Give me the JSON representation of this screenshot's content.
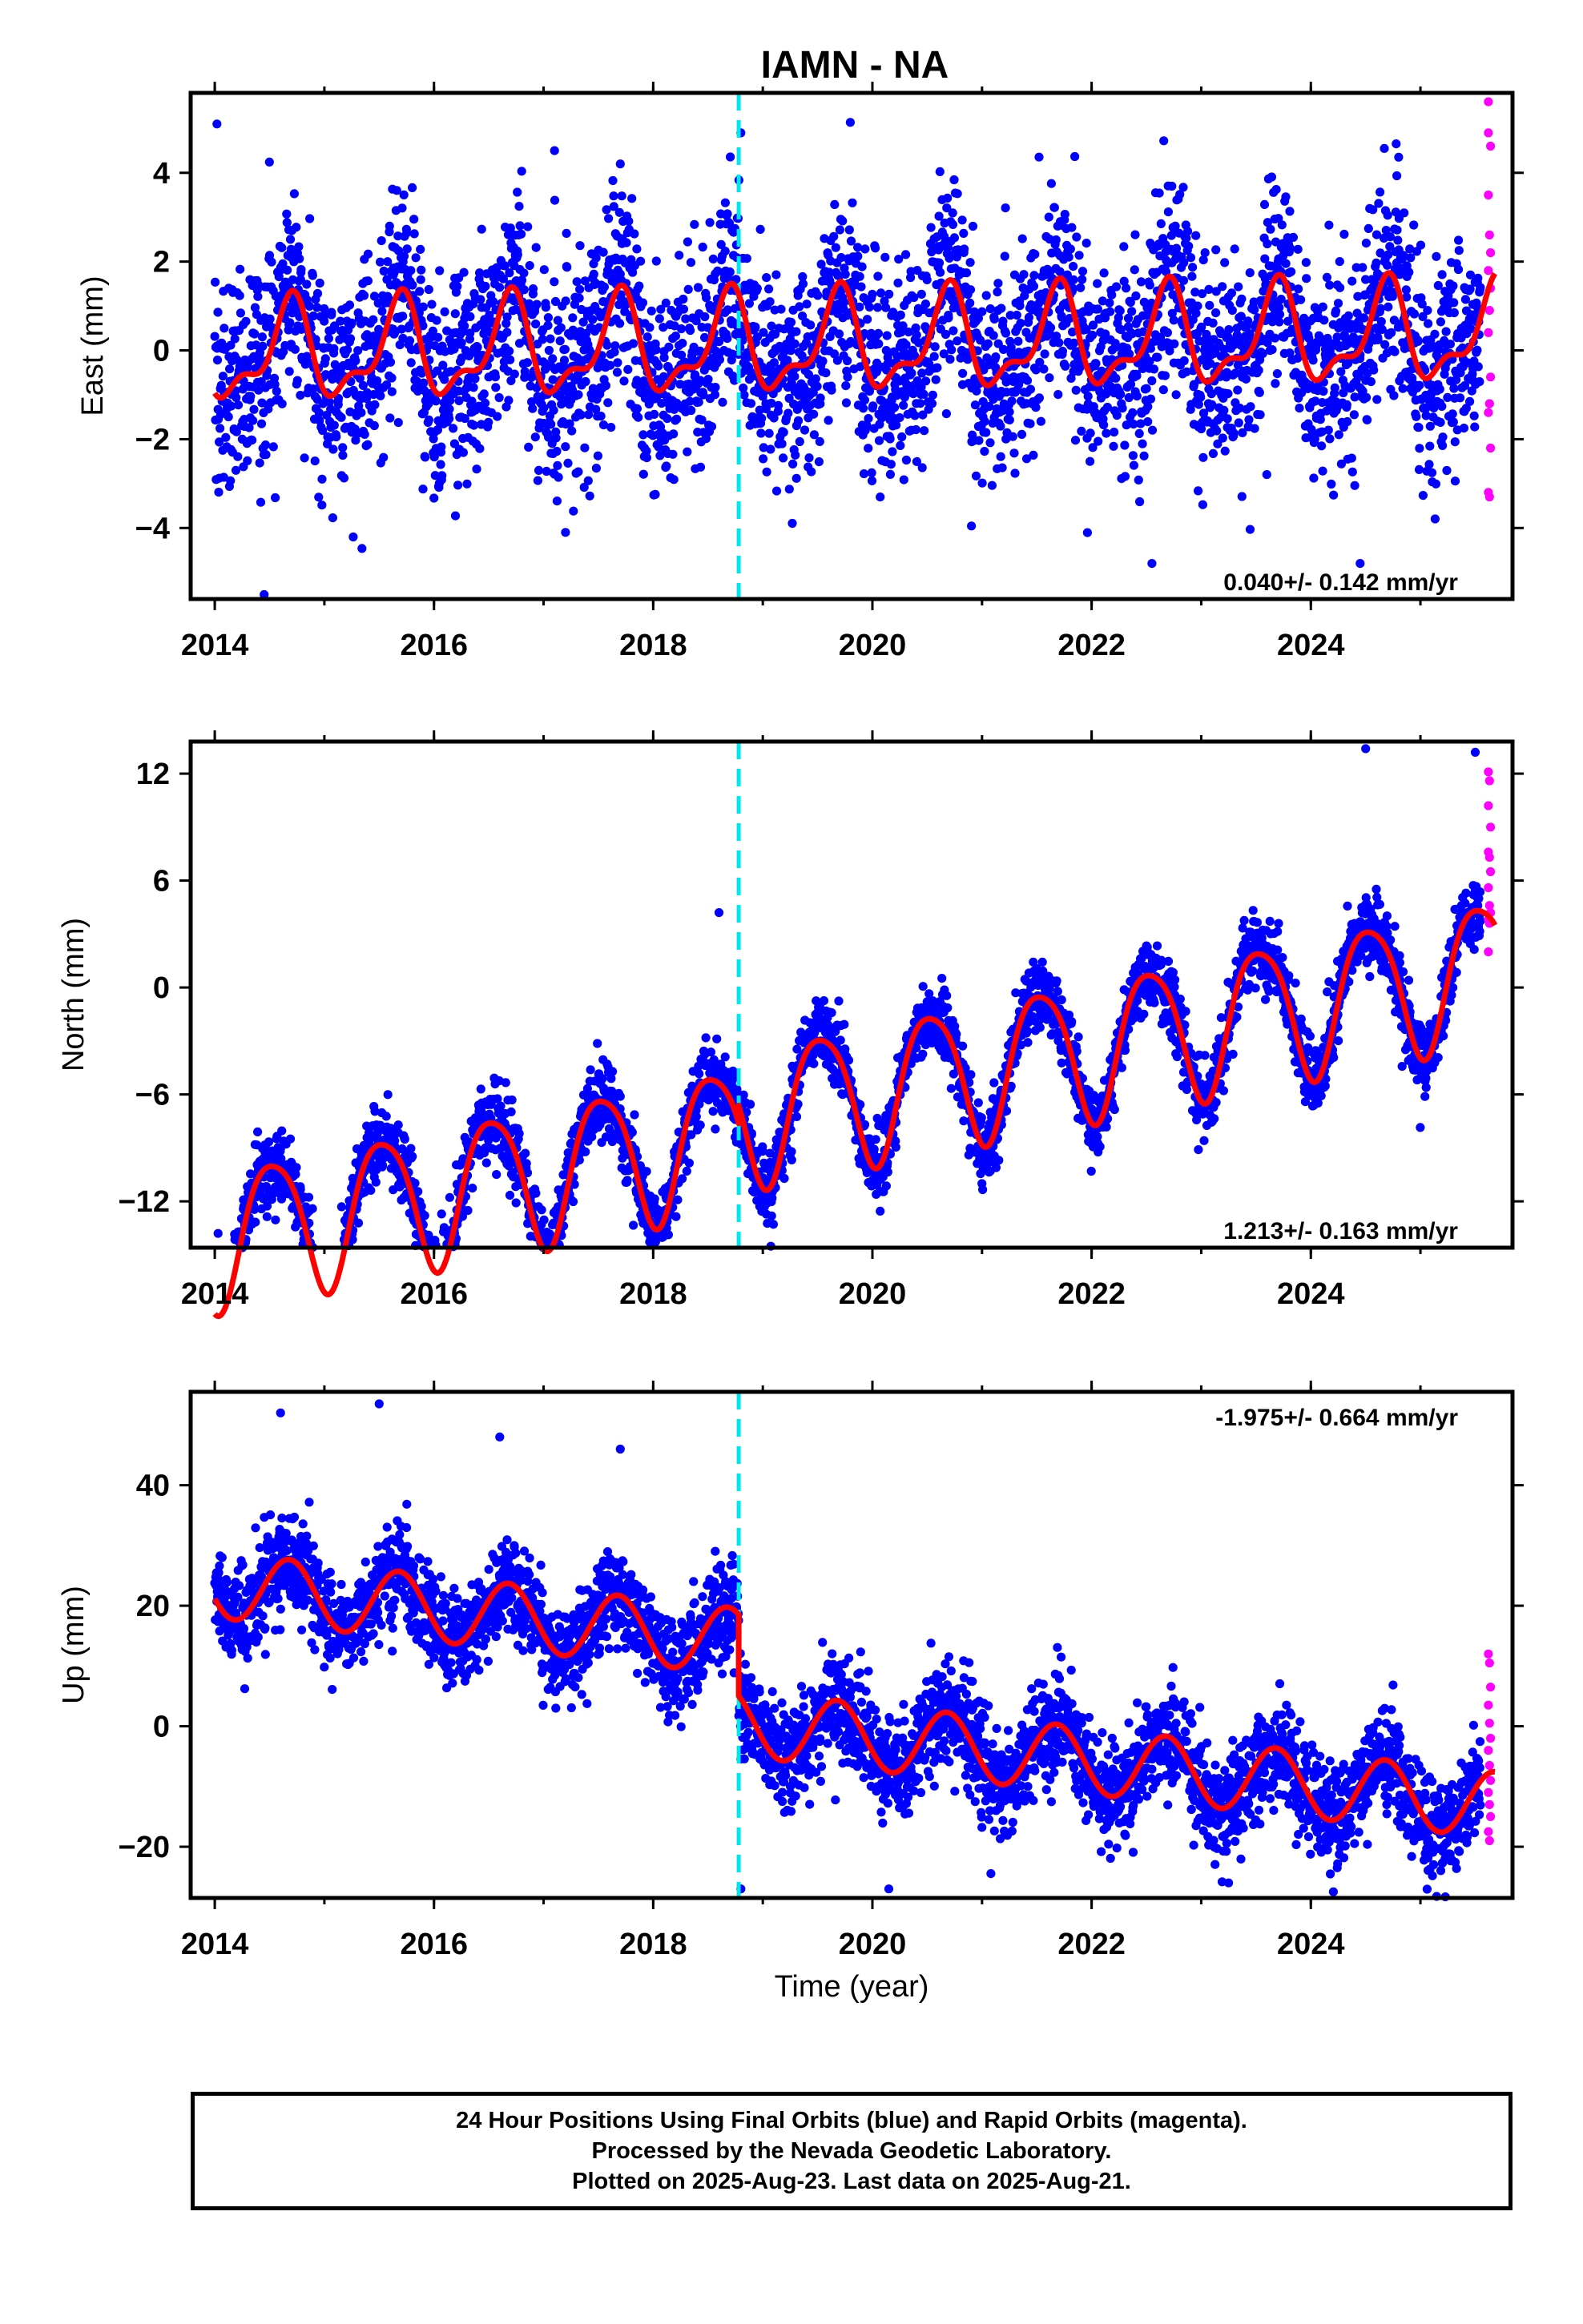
{
  "title": "IAMN - NA",
  "xlabel": "Time (year)",
  "colors": {
    "final_orbits": "#0000ff",
    "rapid_orbits": "#ff00ff",
    "model": "#ff0000",
    "equipment_change": "#00e5ee"
  },
  "caption": {
    "line1": "24 Hour Positions Using Final Orbits (blue) and Rapid Orbits (magenta).",
    "line2": "Processed by the Nevada Geodetic Laboratory.",
    "line3": "Plotted on 2025-Aug-23. Last data on 2025-Aug-21."
  },
  "chart_data": [
    {
      "type": "scatter",
      "ylabel": "East (mm)",
      "rate": "0.040+/- 0.142 mm/yr",
      "rate_position": "bottom-right",
      "xlim": [
        2013.78,
        2025.84
      ],
      "ylim": [
        -5.6,
        5.8
      ],
      "xticks": [
        2014,
        2016,
        2018,
        2020,
        2022,
        2024
      ],
      "yticks": [
        -4,
        -2,
        0,
        2,
        4
      ],
      "offset_epoch": 2018.78,
      "series": [
        {
          "name": "Final Orbits",
          "color": "#0000ff",
          "start": 2014.0,
          "end": 2025.55,
          "spread": 1.15,
          "outliers": [
            [
              2014.02,
              5.1
            ],
            [
              2018.8,
              4.9
            ],
            [
              2014.45,
              -5.5
            ],
            [
              2017.1,
              4.5
            ],
            [
              2017.7,
              4.2
            ],
            [
              2017.2,
              -4.1
            ],
            [
              2022.55,
              -4.8
            ],
            [
              2024.45,
              -4.8
            ]
          ]
        },
        {
          "name": "Rapid Orbits",
          "color": "#ff00ff",
          "points": [
            [
              2025.62,
              5.6
            ],
            [
              2025.62,
              4.9
            ],
            [
              2025.64,
              4.6
            ],
            [
              2025.62,
              3.5
            ],
            [
              2025.63,
              2.6
            ],
            [
              2025.64,
              2.2
            ],
            [
              2025.62,
              1.8
            ],
            [
              2025.64,
              1.4
            ],
            [
              2025.63,
              0.9
            ],
            [
              2025.62,
              0.4
            ],
            [
              2025.64,
              -0.6
            ],
            [
              2025.63,
              -1.2
            ],
            [
              2025.62,
              -1.4
            ],
            [
              2025.64,
              -2.2
            ],
            [
              2025.62,
              -3.2
            ],
            [
              2025.63,
              -3.3
            ]
          ]
        }
      ],
      "model": {
        "color": "#ff0000",
        "start": 2014.0,
        "end": 2025.68,
        "trend_mm_per_yr": 0.04,
        "intercept": -0.1,
        "annual_amp": 1.0,
        "annual_phase_yr": 0.68,
        "semiannual_amp": 0.45,
        "semiannual_phase_yr": 0.23,
        "offset_mm": 0.0
      }
    },
    {
      "type": "scatter",
      "ylabel": "North (mm)",
      "rate": "1.213+/- 0.163 mm/yr",
      "rate_position": "bottom-right",
      "xlim": [
        2013.78,
        2025.84
      ],
      "ylim": [
        -14.6,
        13.8
      ],
      "xticks": [
        2014,
        2016,
        2018,
        2020,
        2022,
        2024
      ],
      "yticks": [
        -12,
        -6,
        0,
        6,
        12
      ],
      "offset_epoch": 2018.78,
      "series": [
        {
          "name": "Final Orbits",
          "color": "#0000ff",
          "start": 2014.0,
          "end": 2025.55,
          "spread": 1.0,
          "outliers": [
            [
              2014.03,
              -13.8
            ],
            [
              2015.95,
              -13.9
            ],
            [
              2025.5,
              13.2
            ],
            [
              2024.5,
              13.4
            ],
            [
              2018.6,
              4.2
            ]
          ]
        },
        {
          "name": "Rapid Orbits",
          "color": "#ff00ff",
          "points": [
            [
              2025.62,
              12.1
            ],
            [
              2025.63,
              11.6
            ],
            [
              2025.62,
              10.2
            ],
            [
              2025.64,
              9.0
            ],
            [
              2025.62,
              7.6
            ],
            [
              2025.63,
              7.3
            ],
            [
              2025.64,
              6.5
            ],
            [
              2025.62,
              5.6
            ],
            [
              2025.63,
              4.6
            ],
            [
              2025.64,
              4.2
            ],
            [
              2025.62,
              3.8
            ],
            [
              2025.63,
              3.6
            ],
            [
              2025.62,
              2.0
            ]
          ]
        }
      ],
      "model": {
        "color": "#ff0000",
        "start": 2014.0,
        "end": 2025.68,
        "trend_mm_per_yr": 1.213,
        "intercept": -14.0,
        "annual_amp": 3.9,
        "annual_phase_yr": 0.53,
        "semiannual_amp": 0.6,
        "semiannual_phase_yr": 0.3,
        "offset_mm": 1.0
      }
    },
    {
      "type": "scatter",
      "ylabel": "Up (mm)",
      "rate": "-1.975+/- 0.664 mm/yr",
      "rate_position": "top-right",
      "xlim": [
        2013.78,
        2025.84
      ],
      "ylim": [
        -28.5,
        55.5
      ],
      "xticks": [
        2014,
        2016,
        2018,
        2020,
        2022,
        2024
      ],
      "yticks": [
        -20,
        0,
        20,
        40
      ],
      "offset_epoch": 2018.78,
      "series": [
        {
          "name": "Final Orbits",
          "color": "#0000ff",
          "start": 2014.0,
          "end": 2025.55,
          "spread": 4.2,
          "outliers": [
            [
              2014.6,
              52.0
            ],
            [
              2015.5,
              53.5
            ],
            [
              2016.6,
              48.0
            ],
            [
              2017.7,
              46.0
            ],
            [
              2018.8,
              -27.0
            ],
            [
              2020.15,
              -27.0
            ],
            [
              2023.25,
              -26.0
            ]
          ]
        },
        {
          "name": "Rapid Orbits",
          "color": "#ff00ff",
          "points": [
            [
              2025.62,
              12.0
            ],
            [
              2025.63,
              10.5
            ],
            [
              2025.64,
              6.5
            ],
            [
              2025.62,
              3.5
            ],
            [
              2025.63,
              0.5
            ],
            [
              2025.64,
              -2.0
            ],
            [
              2025.62,
              -4.0
            ],
            [
              2025.63,
              -6.5
            ],
            [
              2025.64,
              -9.0
            ],
            [
              2025.62,
              -11.0
            ],
            [
              2025.63,
              -13.0
            ],
            [
              2025.64,
              -15.0
            ],
            [
              2025.62,
              -17.5
            ],
            [
              2025.63,
              -19.0
            ]
          ]
        }
      ],
      "model": {
        "color": "#ff0000",
        "start": 2014.0,
        "end": 2025.68,
        "trend_mm_per_yr": -1.975,
        "intercept": 23.5,
        "annual_amp": 5.5,
        "annual_phase_yr": 0.68,
        "semiannual_amp": 0.0,
        "semiannual_phase_yr": 0.0,
        "offset_mm": -13.5
      }
    }
  ]
}
